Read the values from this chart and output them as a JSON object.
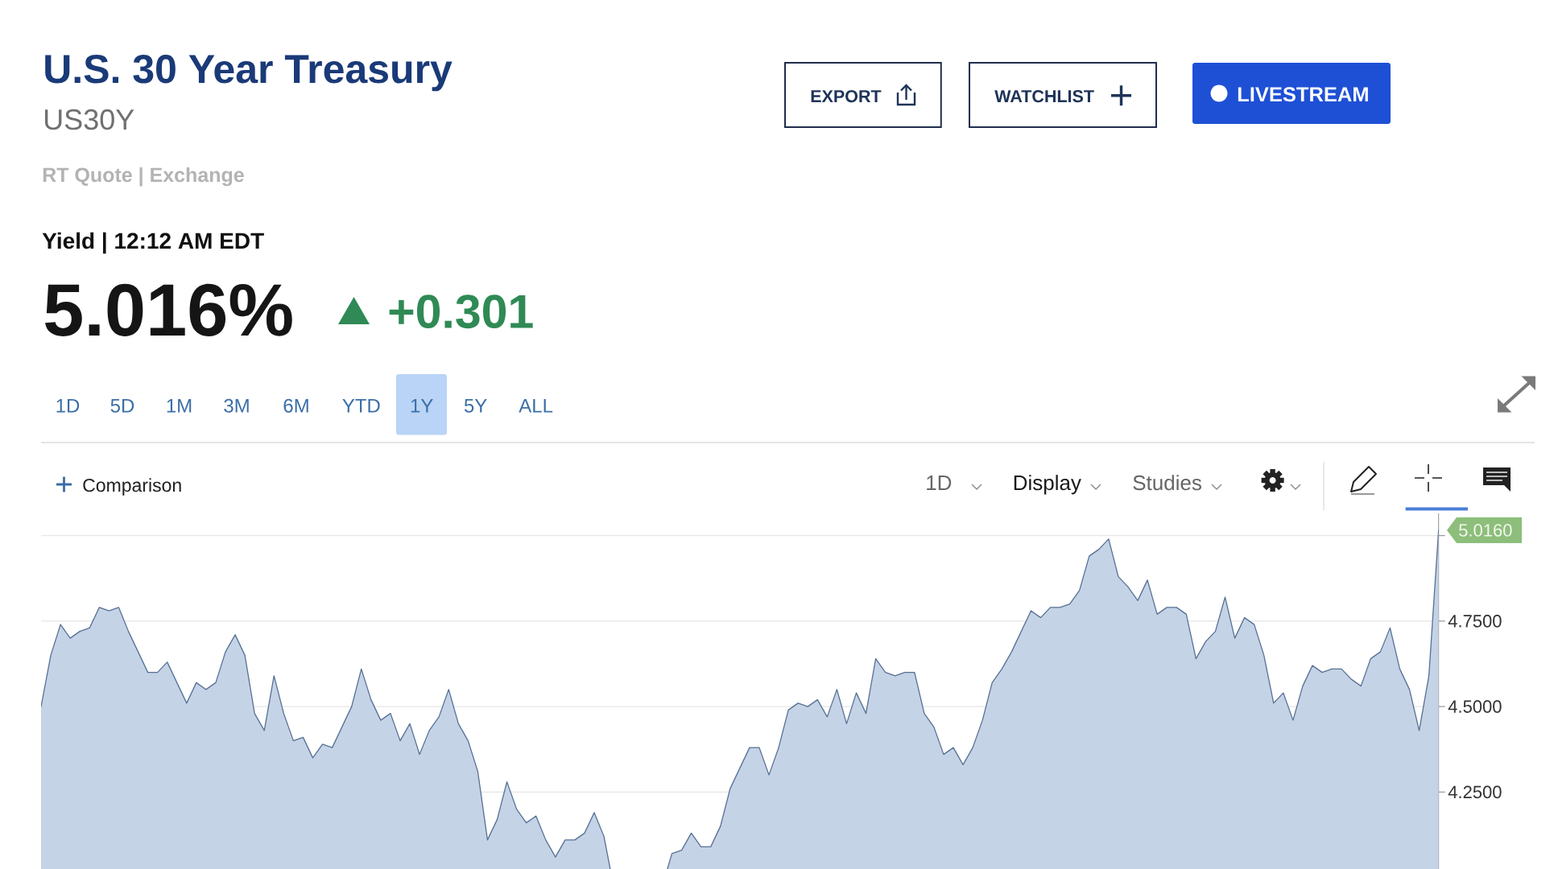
{
  "chart_data": {
    "type": "area",
    "title": "U.S. 30 Year Treasury",
    "subtitle": "US30Y",
    "categories": [
      null,
      null,
      null,
      null,
      null,
      null,
      null,
      null,
      null,
      null,
      null,
      null,
      null,
      null,
      null,
      null,
      null,
      null,
      null,
      null,
      null,
      null,
      null,
      null,
      null,
      null,
      null,
      null,
      null,
      null,
      null,
      null,
      null,
      null,
      null,
      null,
      null,
      null,
      null,
      null,
      null,
      null,
      null,
      null,
      null,
      null,
      null,
      null,
      null,
      null,
      null,
      null,
      null,
      null,
      null,
      null,
      null,
      null,
      null,
      null,
      null,
      null,
      null,
      null,
      null,
      null,
      null,
      null,
      null,
      null,
      null,
      null,
      null,
      null,
      null,
      null,
      null,
      null,
      null,
      null,
      null,
      null,
      null,
      null,
      null,
      null,
      null,
      null,
      null,
      null,
      null,
      null,
      null,
      null,
      null,
      null,
      null,
      null,
      null,
      null,
      null,
      null,
      null,
      null,
      null,
      null,
      null,
      null,
      null,
      null,
      null,
      null,
      null,
      null,
      null,
      null,
      null,
      null,
      null,
      null,
      null,
      null,
      null,
      null,
      null,
      null,
      null,
      null,
      null,
      null,
      null,
      null,
      null,
      null,
      null,
      null,
      null,
      null,
      null,
      null,
      null,
      null,
      null,
      null,
      null
    ],
    "values": [
      4.5,
      4.65,
      4.74,
      4.7,
      4.72,
      4.73,
      4.79,
      4.78,
      4.79,
      4.72,
      4.66,
      4.6,
      4.6,
      4.63,
      4.57,
      4.51,
      4.57,
      4.55,
      4.57,
      4.66,
      4.71,
      4.65,
      4.48,
      4.43,
      4.59,
      4.48,
      4.4,
      4.41,
      4.35,
      4.39,
      4.38,
      4.44,
      4.5,
      4.61,
      4.52,
      4.46,
      4.48,
      4.4,
      4.45,
      4.36,
      4.43,
      4.47,
      4.55,
      4.45,
      4.4,
      4.31,
      4.11,
      4.17,
      4.28,
      4.2,
      4.16,
      4.18,
      4.11,
      4.06,
      4.11,
      4.11,
      4.13,
      4.19,
      4.12,
      null,
      null,
      null,
      null,
      null,
      null,
      4.07,
      4.08,
      4.13,
      4.09,
      4.09,
      4.15,
      4.26,
      4.32,
      4.38,
      4.38,
      4.3,
      4.38,
      4.49,
      4.51,
      4.5,
      4.52,
      4.47,
      4.55,
      4.45,
      4.54,
      4.48,
      4.64,
      4.6,
      4.59,
      4.6,
      4.6,
      4.48,
      4.44,
      4.36,
      4.38,
      4.33,
      4.38,
      4.46,
      4.57,
      4.61,
      4.66,
      4.72,
      4.78,
      4.76,
      4.79,
      4.79,
      4.8,
      4.84,
      4.94,
      4.96,
      4.99,
      4.88,
      4.85,
      4.81,
      4.87,
      4.77,
      4.79,
      4.79,
      4.77,
      4.64,
      4.69,
      4.72,
      4.82,
      4.7,
      4.76,
      4.74,
      4.65,
      4.51,
      4.54,
      4.46,
      4.56,
      4.62,
      4.6,
      4.61,
      4.61,
      4.58,
      4.56,
      4.64,
      4.66,
      4.73,
      4.61,
      4.55,
      4.43,
      4.59,
      5.016
    ],
    "color": "#C5D3E6",
    "ylim": [
      4.025,
      5.065
    ],
    "yticks": [
      {
        "value": 4.25,
        "label": "4.2500"
      },
      {
        "value": 4.5,
        "label": "4.5000"
      },
      {
        "value": 4.75,
        "label": "4.7500"
      },
      {
        "value": 5.0,
        "label": null
      }
    ],
    "grid": "y",
    "tick_labels": "y",
    "annotations": [
      "RT Quote | Exchange",
      "Yield | 12:12 AM EDT",
      "5.016%",
      "+0.301",
      "EXPORT",
      "WATCHLIST",
      "LIVESTREAM",
      "1D",
      "5D",
      "1M",
      "3M",
      "6M",
      "YTD",
      "1Y",
      "5Y",
      "ALL",
      "Comparison",
      "1D",
      "Display",
      "Studies",
      "5.0160"
    ]
  }
}
